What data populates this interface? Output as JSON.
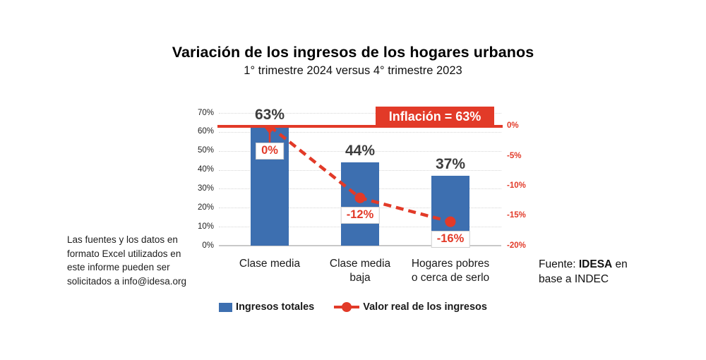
{
  "chart_data": {
    "type": "bar",
    "title": "Variación de los ingresos de los hogares urbanos",
    "subtitle": "1° trimestre 2024 versus 4° trimestre 2023",
    "categories": [
      "Clase media",
      "Clase media\nbaja",
      "Hogares pobres\no cerca de serlo"
    ],
    "series": [
      {
        "name": "Ingresos totales",
        "type": "bar",
        "axis": "left",
        "values": [
          63,
          44,
          37
        ],
        "value_labels": [
          "63%",
          "44%",
          "37%"
        ],
        "color": "#3d6fb0"
      },
      {
        "name": "Valor real de los ingresos",
        "type": "line",
        "style": "dashed",
        "axis": "right",
        "values": [
          0,
          -12,
          -16
        ],
        "value_labels": [
          "0%",
          "-12%",
          "-16%"
        ],
        "color": "#e23a28"
      }
    ],
    "left_axis": {
      "ticks": [
        "0%",
        "10%",
        "20%",
        "30%",
        "40%",
        "50%",
        "60%",
        "70%"
      ],
      "min": 0,
      "max": 70
    },
    "right_axis": {
      "ticks": [
        "0%",
        "-5%",
        "-10%",
        "-15%",
        "-20%"
      ],
      "min": -20,
      "max": 0
    },
    "annotation": {
      "text": "Inflación = 63%",
      "value": 63,
      "color": "#e23a28"
    },
    "grid": true,
    "legend_position": "bottom"
  },
  "footnote": {
    "lines": [
      "Las fuentes y los datos en",
      "formato Excel utilizados en",
      "este informe pueden ser",
      "solicitados a info@idesa.org"
    ]
  },
  "source": {
    "prefix": "Fuente: ",
    "org": "IDESA",
    "after": " en",
    "line2": "base a INDEC"
  },
  "colors": {
    "bar_blue": "#3d6fb0",
    "accent_red": "#e23a28"
  }
}
